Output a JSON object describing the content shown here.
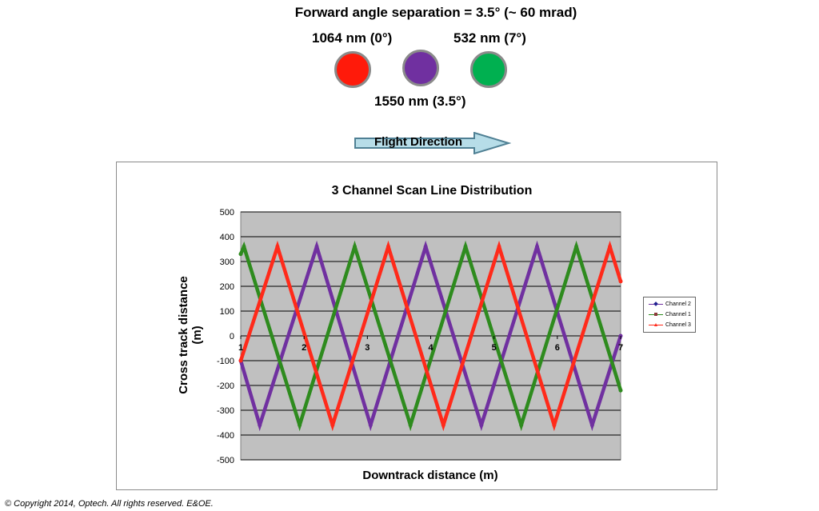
{
  "heading": "Forward angle separation = 3.5° (~ 60 mrad)",
  "channels": [
    {
      "label": "1064 nm (0°)",
      "color": "#ff1a0a"
    },
    {
      "label": "1550 nm (3.5°)",
      "color": "#7030a0"
    },
    {
      "label": "532 nm (7°)",
      "color": "#00b050"
    }
  ],
  "arrow": {
    "label": "Flight Direction",
    "fill": "#b7dde8",
    "stroke": "#4f8094"
  },
  "copyright": "© Copyright 2014, Optech. All rights reserved.  E&OE.",
  "chart_data": {
    "type": "line",
    "title": "3 Channel Scan Line Distribution",
    "xlabel": "Downtrack distance (m)",
    "ylabel": "Cross track distance (m)",
    "xlim": [
      1,
      7
    ],
    "ylim": [
      -500,
      500
    ],
    "xticks": [
      1,
      2,
      3,
      4,
      5,
      6,
      7
    ],
    "yticks": [
      500,
      400,
      300,
      200,
      100,
      0,
      -100,
      -200,
      -300,
      -400,
      -500
    ],
    "grid": true,
    "plot_background": "#c0c0c0",
    "legend_position": "right",
    "series": [
      {
        "name": "Channel 2",
        "color": "#7030a0",
        "marker": "diamond",
        "x": [
          1,
          1.3,
          2.2,
          3.05,
          3.92,
          4.8,
          5.68,
          6.55,
          7
        ],
        "y": [
          -100,
          -360,
          360,
          -360,
          360,
          -360,
          360,
          -360,
          0
        ]
      },
      {
        "name": "Channel 1",
        "color": "#2e8b1e",
        "marker": "square",
        "x": [
          1,
          1.05,
          1.93,
          2.8,
          3.68,
          4.55,
          5.43,
          6.3,
          7
        ],
        "y": [
          330,
          360,
          -360,
          360,
          -360,
          360,
          -360,
          360,
          -220
        ]
      },
      {
        "name": "Channel 3",
        "color": "#ff2a1a",
        "marker": "triangle",
        "x": [
          1,
          1.58,
          2.45,
          3.33,
          4.2,
          5.08,
          5.95,
          6.83,
          7
        ],
        "y": [
          -100,
          360,
          -360,
          360,
          -360,
          360,
          -360,
          360,
          220
        ]
      }
    ]
  }
}
